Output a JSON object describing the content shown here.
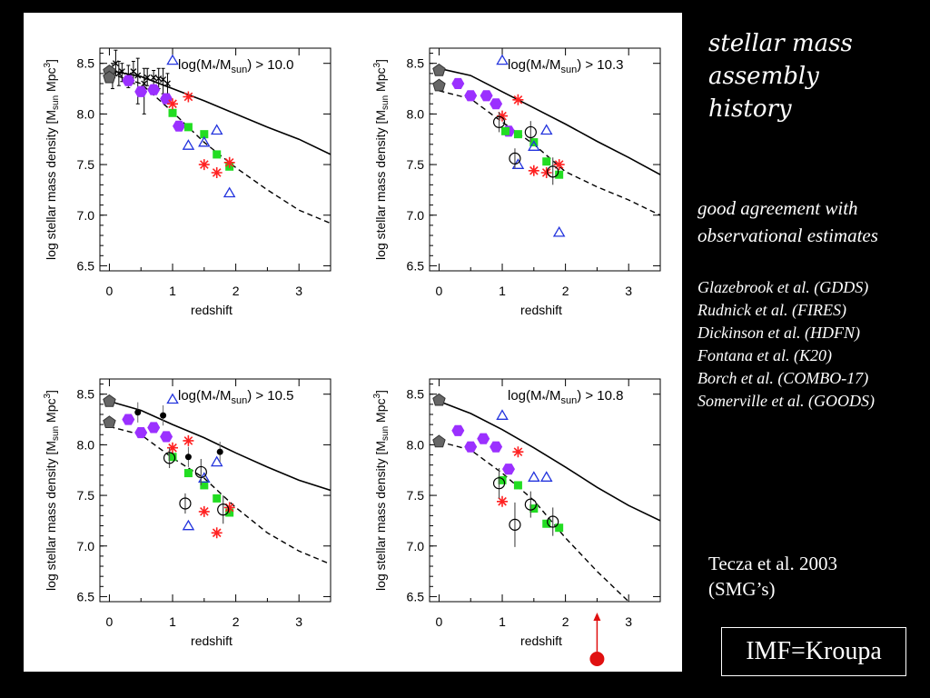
{
  "slide": {
    "title_lines": [
      "stellar mass",
      "assembly",
      "history"
    ],
    "agreement_lines": [
      "good agreement with",
      "observational estimates"
    ],
    "references": [
      "Glazebrook et al. (GDDS)",
      "Rudnick et al. (FIRES)",
      "Dickinson et al. (HDFN)",
      "Fontana et al. (K20)",
      "Borch et al. (COMBO-17)",
      "Somerville et al. (GOODS)"
    ],
    "tecza_lines": [
      "Tecza et al.  2003",
      "(SMG’s)"
    ],
    "imf_label": "IMF=Kroupa"
  },
  "colors": {
    "background": "#000000",
    "panel": "#ffffff",
    "purple": "#9b30ff",
    "green": "#22dd22",
    "red": "#ff2222",
    "blue": "#2233dd",
    "gray": "#666666",
    "arrow": "#e01010"
  },
  "chart_data": [
    {
      "type": "scatter",
      "label_prefix": "log(M",
      "label_star": "*",
      "label_mid": "/M",
      "label_sub": "sun",
      "label_suffix": ") > 10.0",
      "xlabel": "redshift",
      "ylabel_main": "log stellar mass density [M",
      "ylabel_sub": "sun",
      "ylabel_end": " Mpc",
      "ylabel_sup": "3",
      "ylabel_close": "]",
      "xlim": [
        -0.15,
        3.5
      ],
      "ylim": [
        6.45,
        8.65
      ],
      "xticks": [
        "0",
        "1",
        "2",
        "3"
      ],
      "yticks": [
        "6.5",
        "7.0",
        "7.5",
        "8.0",
        "8.5"
      ],
      "model_solid": [
        [
          0,
          8.43
        ],
        [
          0.5,
          8.37
        ],
        [
          1.0,
          8.25
        ],
        [
          1.5,
          8.13
        ],
        [
          2.0,
          8.0
        ],
        [
          2.5,
          7.87
        ],
        [
          3.0,
          7.75
        ],
        [
          3.5,
          7.6
        ]
      ],
      "model_dashed": [
        [
          0,
          8.4
        ],
        [
          0.5,
          8.3
        ],
        [
          1.0,
          8.02
        ],
        [
          1.5,
          7.72
        ],
        [
          2.0,
          7.47
        ],
        [
          2.5,
          7.25
        ],
        [
          3.0,
          7.05
        ],
        [
          3.5,
          6.92
        ]
      ],
      "gray_pentagons": [
        {
          "x": 0.0,
          "y": 8.42
        },
        {
          "x": 0.0,
          "y": 8.36
        }
      ],
      "purple_hexagons": [
        {
          "x": 0.3,
          "y": 8.33
        },
        {
          "x": 0.5,
          "y": 8.22
        },
        {
          "x": 0.7,
          "y": 8.24
        },
        {
          "x": 0.9,
          "y": 8.15
        },
        {
          "x": 1.1,
          "y": 7.88
        }
      ],
      "green_squares": [
        {
          "x": 1.0,
          "y": 8.01
        },
        {
          "x": 1.25,
          "y": 7.87
        },
        {
          "x": 1.5,
          "y": 7.8
        },
        {
          "x": 1.7,
          "y": 7.6
        },
        {
          "x": 1.9,
          "y": 7.48
        }
      ],
      "red_stars": [
        {
          "x": 1.0,
          "y": 8.1
        },
        {
          "x": 1.25,
          "y": 8.17
        },
        {
          "x": 1.5,
          "y": 7.5
        },
        {
          "x": 1.7,
          "y": 7.42
        },
        {
          "x": 1.9,
          "y": 7.52
        }
      ],
      "blue_triangles": [
        {
          "x": 1.0,
          "y": 8.53
        },
        {
          "x": 1.25,
          "y": 7.69
        },
        {
          "x": 1.5,
          "y": 7.72
        },
        {
          "x": 1.7,
          "y": 7.84
        },
        {
          "x": 1.9,
          "y": 7.22
        }
      ],
      "black_dots": [],
      "open_circles": [],
      "error_points": [
        {
          "x": 0.05,
          "y": 8.38,
          "lo": 8.25,
          "hi": 8.5
        },
        {
          "x": 0.1,
          "y": 8.5,
          "lo": 8.38,
          "hi": 8.63
        },
        {
          "x": 0.15,
          "y": 8.4,
          "lo": 8.28,
          "hi": 8.52
        },
        {
          "x": 0.2,
          "y": 8.42,
          "lo": 8.32,
          "hi": 8.5
        },
        {
          "x": 0.3,
          "y": 8.38,
          "lo": 8.26,
          "hi": 8.48
        },
        {
          "x": 0.38,
          "y": 8.42,
          "lo": 8.3,
          "hi": 8.52
        },
        {
          "x": 0.45,
          "y": 8.38,
          "lo": 8.1,
          "hi": 8.55
        },
        {
          "x": 0.55,
          "y": 8.3,
          "lo": 8.0,
          "hi": 8.45
        },
        {
          "x": 0.6,
          "y": 8.36,
          "lo": 8.28,
          "hi": 8.45
        },
        {
          "x": 0.7,
          "y": 8.36,
          "lo": 8.28,
          "hi": 8.43
        },
        {
          "x": 0.78,
          "y": 8.35,
          "lo": 8.25,
          "hi": 8.45
        },
        {
          "x": 0.85,
          "y": 8.34,
          "lo": 8.2,
          "hi": 8.45
        },
        {
          "x": 0.92,
          "y": 8.3,
          "lo": 8.2,
          "hi": 8.4
        }
      ],
      "arrow": null
    },
    {
      "type": "scatter",
      "label_prefix": "log(M",
      "label_star": "*",
      "label_mid": "/M",
      "label_sub": "sun",
      "label_suffix": ") > 10.3",
      "xlabel": "redshift",
      "ylabel_main": "log stellar mass density [M",
      "ylabel_sub": "sun",
      "ylabel_end": " Mpc",
      "ylabel_sup": "3",
      "ylabel_close": "]",
      "xlim": [
        -0.15,
        3.5
      ],
      "ylim": [
        6.45,
        8.65
      ],
      "xticks": [
        "0",
        "1",
        "2",
        "3"
      ],
      "yticks": [
        "6.5",
        "7.0",
        "7.5",
        "8.0",
        "8.5"
      ],
      "model_solid": [
        [
          0,
          8.45
        ],
        [
          0.5,
          8.38
        ],
        [
          1.0,
          8.22
        ],
        [
          1.5,
          8.06
        ],
        [
          2.0,
          7.9
        ],
        [
          2.5,
          7.73
        ],
        [
          3.0,
          7.57
        ],
        [
          3.5,
          7.4
        ]
      ],
      "model_dashed": [
        [
          0,
          8.23
        ],
        [
          0.5,
          8.15
        ],
        [
          1.0,
          7.92
        ],
        [
          1.5,
          7.7
        ],
        [
          2.0,
          7.43
        ],
        [
          2.5,
          7.28
        ],
        [
          3.0,
          7.15
        ],
        [
          3.5,
          7.0
        ]
      ],
      "gray_pentagons": [
        {
          "x": 0.0,
          "y": 8.43
        },
        {
          "x": 0.0,
          "y": 8.28
        }
      ],
      "purple_hexagons": [
        {
          "x": 0.3,
          "y": 8.3
        },
        {
          "x": 0.5,
          "y": 8.18
        },
        {
          "x": 0.75,
          "y": 8.18
        },
        {
          "x": 0.9,
          "y": 8.1
        },
        {
          "x": 1.1,
          "y": 7.83
        }
      ],
      "green_squares": [
        {
          "x": 1.05,
          "y": 7.83
        },
        {
          "x": 1.25,
          "y": 7.8
        },
        {
          "x": 1.5,
          "y": 7.72
        },
        {
          "x": 1.7,
          "y": 7.53
        },
        {
          "x": 1.9,
          "y": 7.4
        }
      ],
      "red_stars": [
        {
          "x": 1.0,
          "y": 7.98
        },
        {
          "x": 1.25,
          "y": 8.14
        },
        {
          "x": 1.5,
          "y": 7.44
        },
        {
          "x": 1.7,
          "y": 7.42
        },
        {
          "x": 1.9,
          "y": 7.5
        }
      ],
      "blue_triangles": [
        {
          "x": 1.0,
          "y": 8.53
        },
        {
          "x": 1.25,
          "y": 7.5
        },
        {
          "x": 1.5,
          "y": 7.68
        },
        {
          "x": 1.7,
          "y": 7.84
        },
        {
          "x": 1.9,
          "y": 6.83
        }
      ],
      "black_dots": [],
      "open_circles": [
        {
          "x": 0.95,
          "y": 7.92,
          "lo": 7.82,
          "hi": 8.02
        },
        {
          "x": 1.2,
          "y": 7.56,
          "lo": 7.46,
          "hi": 7.66
        },
        {
          "x": 1.45,
          "y": 7.82,
          "lo": 7.72,
          "hi": 7.93
        },
        {
          "x": 1.8,
          "y": 7.43,
          "lo": 7.3,
          "hi": 7.57
        }
      ],
      "error_points": [],
      "arrow": null
    },
    {
      "type": "scatter",
      "label_prefix": "log(M",
      "label_star": "*",
      "label_mid": "/M",
      "label_sub": "sun",
      "label_suffix": ") > 10.5",
      "xlabel": "redshift",
      "ylabel_main": "log stellar mass density [M",
      "ylabel_sub": "sun",
      "ylabel_end": " Mpc",
      "ylabel_sup": "3",
      "ylabel_close": "]",
      "xlim": [
        -0.15,
        3.5
      ],
      "ylim": [
        6.45,
        8.65
      ],
      "xticks": [
        "0",
        "1",
        "2",
        "3"
      ],
      "yticks": [
        "6.5",
        "7.0",
        "7.5",
        "8.0",
        "8.5"
      ],
      "model_solid": [
        [
          0,
          8.43
        ],
        [
          0.5,
          8.34
        ],
        [
          1.0,
          8.2
        ],
        [
          1.5,
          8.07
        ],
        [
          2.0,
          7.92
        ],
        [
          2.5,
          7.78
        ],
        [
          3.0,
          7.65
        ],
        [
          3.5,
          7.55
        ]
      ],
      "model_dashed": [
        [
          0,
          8.18
        ],
        [
          0.5,
          8.1
        ],
        [
          1.0,
          7.87
        ],
        [
          1.5,
          7.67
        ],
        [
          2.0,
          7.38
        ],
        [
          2.5,
          7.13
        ],
        [
          3.0,
          6.95
        ],
        [
          3.5,
          6.82
        ]
      ],
      "gray_pentagons": [
        {
          "x": 0.0,
          "y": 8.43
        },
        {
          "x": 0.0,
          "y": 8.22
        }
      ],
      "purple_hexagons": [
        {
          "x": 0.3,
          "y": 8.25
        },
        {
          "x": 0.5,
          "y": 8.12
        },
        {
          "x": 0.7,
          "y": 8.17
        },
        {
          "x": 0.9,
          "y": 8.08
        }
      ],
      "green_squares": [
        {
          "x": 1.0,
          "y": 7.88
        },
        {
          "x": 1.25,
          "y": 7.72
        },
        {
          "x": 1.5,
          "y": 7.6
        },
        {
          "x": 1.7,
          "y": 7.47
        },
        {
          "x": 1.9,
          "y": 7.33
        }
      ],
      "red_stars": [
        {
          "x": 1.0,
          "y": 7.97
        },
        {
          "x": 1.25,
          "y": 8.04
        },
        {
          "x": 1.5,
          "y": 7.34
        },
        {
          "x": 1.7,
          "y": 7.13
        },
        {
          "x": 1.9,
          "y": 7.38
        }
      ],
      "blue_triangles": [
        {
          "x": 1.0,
          "y": 8.45
        },
        {
          "x": 1.25,
          "y": 7.2
        },
        {
          "x": 1.5,
          "y": 7.67
        },
        {
          "x": 1.7,
          "y": 7.83
        }
      ],
      "black_dots": [
        {
          "x": 0.45,
          "y": 8.32,
          "lo": 8.22,
          "hi": 8.42
        },
        {
          "x": 0.85,
          "y": 8.29,
          "lo": 8.19,
          "hi": 8.39
        },
        {
          "x": 1.25,
          "y": 7.88,
          "lo": 7.78,
          "hi": 7.98
        },
        {
          "x": 1.75,
          "y": 7.93,
          "lo": 7.83,
          "hi": 8.03
        }
      ],
      "open_circles": [
        {
          "x": 0.95,
          "y": 7.87,
          "lo": 7.77,
          "hi": 7.97
        },
        {
          "x": 1.2,
          "y": 7.42,
          "lo": 7.32,
          "hi": 7.52
        },
        {
          "x": 1.45,
          "y": 7.73,
          "lo": 7.6,
          "hi": 7.86
        },
        {
          "x": 1.8,
          "y": 7.36,
          "lo": 7.22,
          "hi": 7.5
        }
      ],
      "error_points": [],
      "arrow": null
    },
    {
      "type": "scatter",
      "label_prefix": "log(M",
      "label_star": "*",
      "label_mid": "/M",
      "label_sub": "sun",
      "label_suffix": ") > 10.8",
      "xlabel": "redshift",
      "ylabel_main": "log stellar mass density [M",
      "ylabel_sub": "sun",
      "ylabel_end": " Mpc",
      "ylabel_sup": "3",
      "ylabel_close": "]",
      "xlim": [
        -0.15,
        3.5
      ],
      "ylim": [
        6.45,
        8.65
      ],
      "xticks": [
        "0",
        "1",
        "2",
        "3"
      ],
      "yticks": [
        "6.5",
        "7.0",
        "7.5",
        "8.0",
        "8.5"
      ],
      "model_solid": [
        [
          0,
          8.43
        ],
        [
          0.5,
          8.31
        ],
        [
          1.0,
          8.15
        ],
        [
          1.5,
          7.97
        ],
        [
          2.0,
          7.78
        ],
        [
          2.5,
          7.58
        ],
        [
          3.0,
          7.4
        ],
        [
          3.5,
          7.25
        ]
      ],
      "model_dashed": [
        [
          0,
          8.03
        ],
        [
          0.5,
          7.95
        ],
        [
          1.0,
          7.72
        ],
        [
          1.5,
          7.45
        ],
        [
          2.0,
          7.08
        ],
        [
          2.5,
          6.75
        ],
        [
          3.0,
          6.45
        ]
      ],
      "gray_pentagons": [
        {
          "x": 0.0,
          "y": 8.44
        },
        {
          "x": 0.0,
          "y": 8.03
        }
      ],
      "purple_hexagons": [
        {
          "x": 0.3,
          "y": 8.14
        },
        {
          "x": 0.5,
          "y": 7.98
        },
        {
          "x": 0.7,
          "y": 8.06
        },
        {
          "x": 0.9,
          "y": 7.98
        },
        {
          "x": 1.1,
          "y": 7.76
        }
      ],
      "green_squares": [
        {
          "x": 1.0,
          "y": 7.65
        },
        {
          "x": 1.25,
          "y": 7.6
        },
        {
          "x": 1.5,
          "y": 7.37
        },
        {
          "x": 1.7,
          "y": 7.22
        },
        {
          "x": 1.9,
          "y": 7.18
        }
      ],
      "red_stars": [
        {
          "x": 1.0,
          "y": 7.44
        },
        {
          "x": 1.25,
          "y": 7.93
        }
      ],
      "blue_triangles": [
        {
          "x": 1.0,
          "y": 8.29
        },
        {
          "x": 1.5,
          "y": 7.68
        },
        {
          "x": 1.7,
          "y": 7.68
        }
      ],
      "black_dots": [],
      "open_circles": [
        {
          "x": 0.95,
          "y": 7.62,
          "lo": 7.47,
          "hi": 7.77
        },
        {
          "x": 1.2,
          "y": 7.21,
          "lo": 6.99,
          "hi": 7.43
        },
        {
          "x": 1.45,
          "y": 7.41,
          "lo": 7.28,
          "hi": 7.54
        },
        {
          "x": 1.8,
          "y": 7.24,
          "lo": 7.1,
          "hi": 7.38
        }
      ],
      "error_points": [],
      "arrow": {
        "x": 2.5
      }
    }
  ]
}
